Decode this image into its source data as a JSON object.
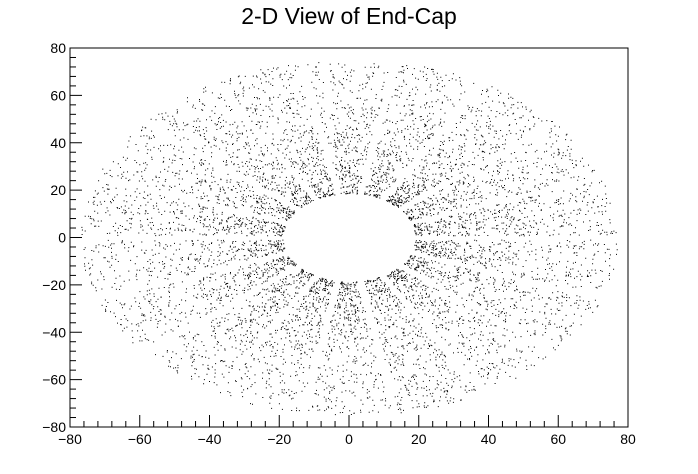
{
  "chart_data": {
    "type": "scatter",
    "title": "2-D View of End-Cap",
    "xlabel": "",
    "ylabel": "",
    "xlim": [
      -80,
      80
    ],
    "ylim": [
      -80,
      80
    ],
    "x_ticks": [
      "−80",
      "−60",
      "−40",
      "−20",
      "0",
      "20",
      "40",
      "60",
      "80"
    ],
    "y_ticks": [
      "80",
      "60",
      "40",
      "20",
      "0",
      "−20",
      "−40",
      "−60",
      "−80"
    ],
    "series": [
      {
        "values_description_note": "",
        "inner_radius": 19,
        "outer_radius": 77,
        "spoke_count": 18,
        "point_color": "#000000"
      }
    ],
    "grid": false,
    "legend": "none"
  }
}
